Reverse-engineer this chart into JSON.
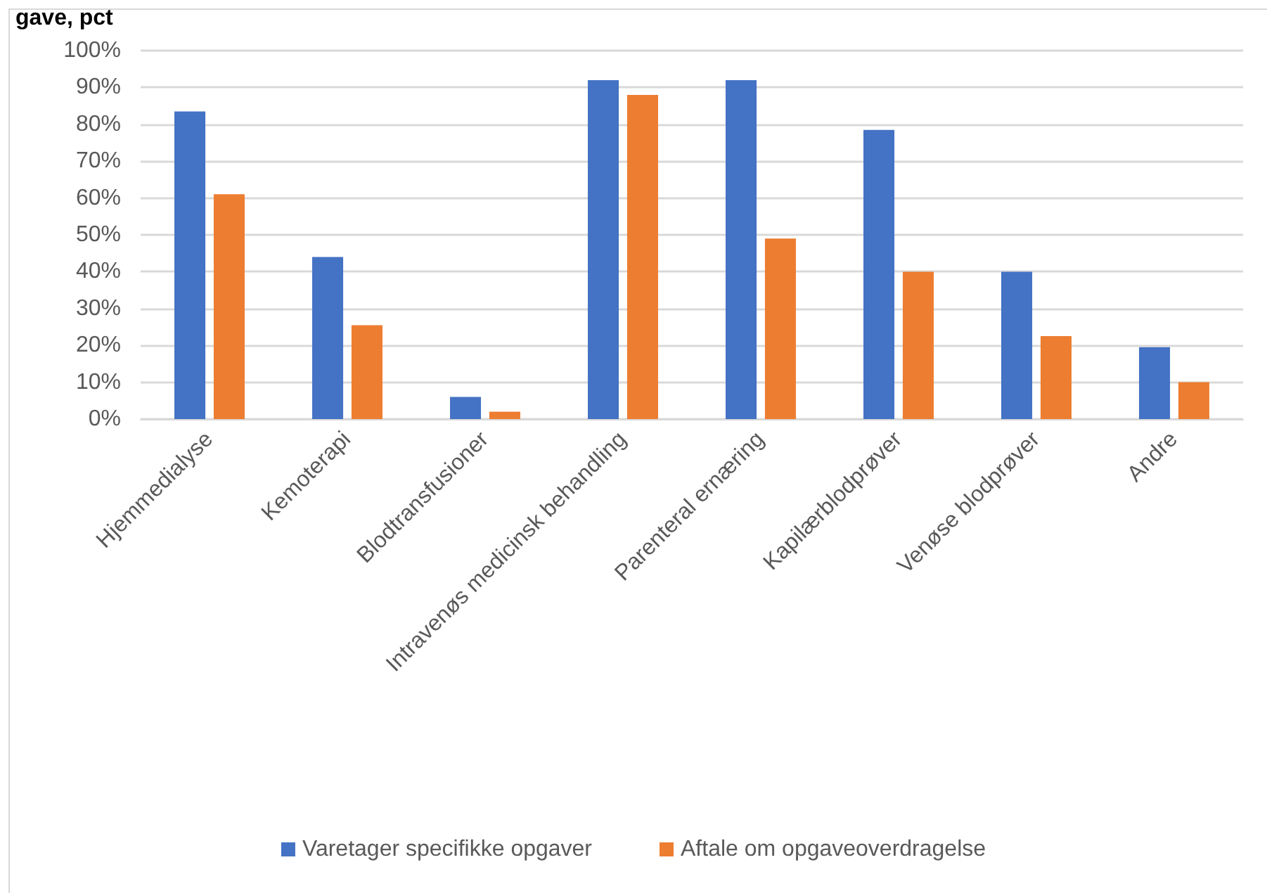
{
  "chart_data": {
    "type": "bar",
    "title": "gave, pct",
    "categories": [
      "Hjemmedialyse",
      "Kemoterapi",
      "Blodtransfusioner",
      "Intravenøs medicinsk behandling",
      "Parenteral ernæring",
      "Kapilærblodprøver",
      "Venøse blodprøver",
      "Andre"
    ],
    "series": [
      {
        "name": "Varetager specifikke opgaver",
        "color": "#4472c4",
        "values": [
          83.5,
          44,
          6,
          92,
          92,
          78.5,
          40,
          19.5
        ]
      },
      {
        "name": "Aftale om opgaveoverdragelse",
        "color": "#ed7d31",
        "values": [
          61,
          25.5,
          2,
          88,
          49,
          40,
          22.5,
          10
        ]
      }
    ],
    "ylim": [
      0,
      100
    ],
    "yticks": [
      {
        "value": 0,
        "label": "0%"
      },
      {
        "value": 10,
        "label": "10%"
      },
      {
        "value": 20,
        "label": "20%"
      },
      {
        "value": 30,
        "label": "30%"
      },
      {
        "value": 40,
        "label": "40%"
      },
      {
        "value": 50,
        "label": "50%"
      },
      {
        "value": 60,
        "label": "60%"
      },
      {
        "value": 70,
        "label": "70%"
      },
      {
        "value": 80,
        "label": "80%"
      },
      {
        "value": 90,
        "label": "90%"
      },
      {
        "value": 100,
        "label": "100%"
      }
    ],
    "grid": true,
    "legend": "bottom"
  }
}
